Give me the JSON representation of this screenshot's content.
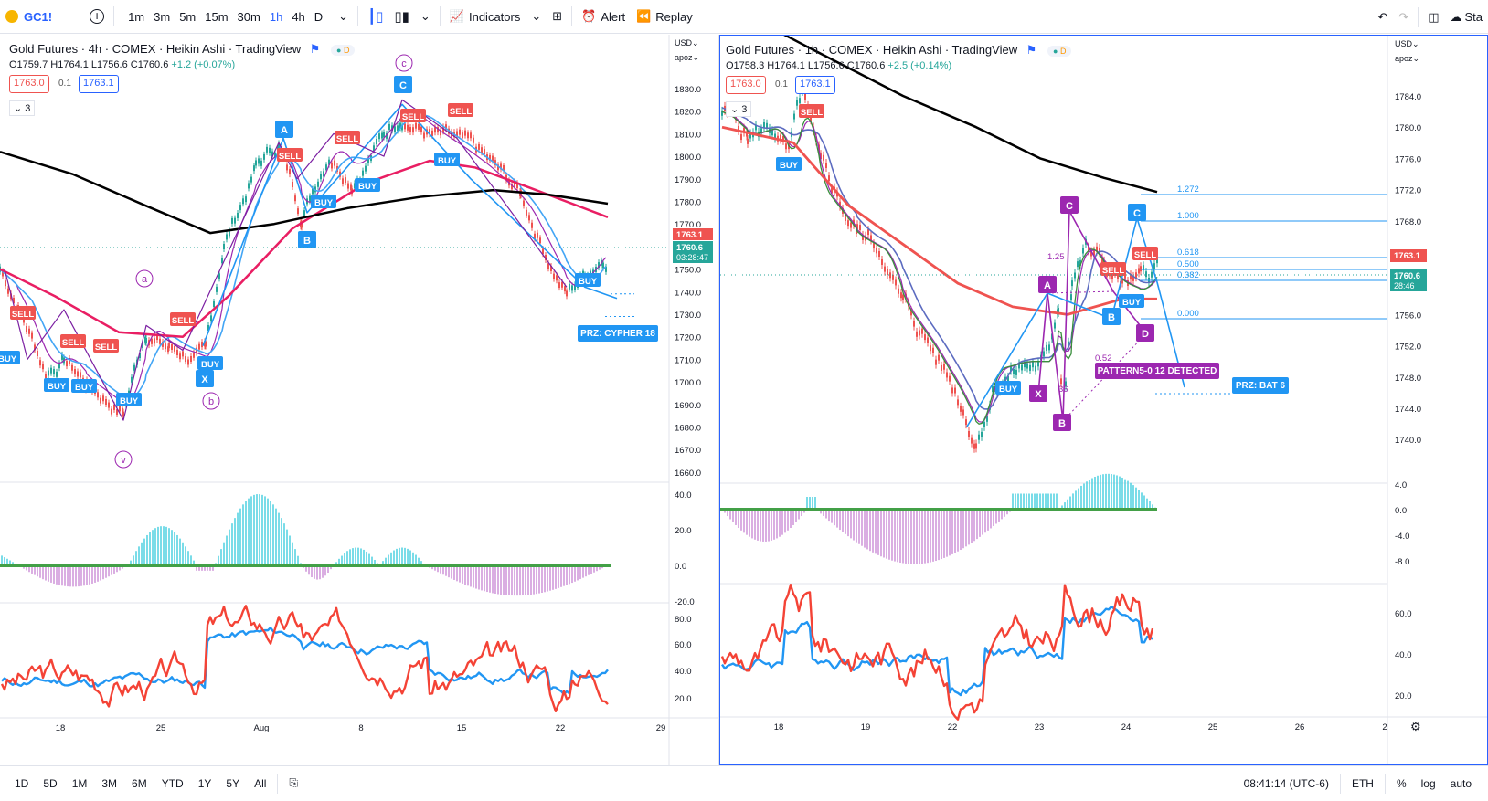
{
  "toolbar": {
    "symbol": "GC1!",
    "intervals": [
      "1m",
      "3m",
      "5m",
      "15m",
      "30m",
      "1h",
      "4h",
      "D"
    ],
    "active_interval": "1h",
    "indicators_label": "Indicators",
    "alert_label": "Alert",
    "replay_label": "Replay",
    "right_truncated": "Sta"
  },
  "left_chart": {
    "title": "Gold Futures · 4h · COMEX · Heikin Ashi · TradingView",
    "ohlc": {
      "o": "O1759.7",
      "h": "H1764.1",
      "l": "L1756.6",
      "c": "C1760.6",
      "chg": "+1.2 (+0.07%)"
    },
    "bid": "1763.0",
    "spread": "0.1",
    "ask": "1763.1",
    "counter": "3",
    "currency": "USD",
    "scale_label": "apoz",
    "price_ticks": [
      "1830.0",
      "1820.0",
      "1810.0",
      "1800.0",
      "1790.0",
      "1780.0",
      "1770.0",
      "1760.0",
      "1750.0",
      "1740.0",
      "1730.0",
      "1720.0",
      "1710.0",
      "1700.0",
      "1690.0",
      "1680.0",
      "1670.0",
      "1660.0"
    ],
    "osc_ticks": [
      "40.0",
      "20.0",
      "0.0",
      "-20.0"
    ],
    "rsi_ticks": [
      "80.0",
      "60.0",
      "40.0",
      "20.0"
    ],
    "time_ticks": [
      "18",
      "25",
      "Aug",
      "8",
      "15",
      "22",
      "29"
    ],
    "price_label": "1763.1",
    "last_label": "1760.6",
    "countdown": "03:28:47",
    "wave_labels": [
      "a",
      "b",
      "c",
      "v"
    ],
    "pattern_labels": [
      "A",
      "B",
      "C",
      "X"
    ],
    "signals": [
      "SELL",
      "BUY"
    ],
    "prz": "PRZ: CYPHER 18"
  },
  "right_chart": {
    "title": "Gold Futures · 1h · COMEX · Heikin Ashi · TradingView",
    "ohlc": {
      "o": "O1758.3",
      "h": "H1764.1",
      "l": "L1756.6",
      "c": "C1760.6",
      "chg": "+2.5 (+0.14%)"
    },
    "bid": "1763.0",
    "spread": "0.1",
    "ask": "1763.1",
    "counter": "3",
    "currency": "USD",
    "scale_label": "apoz",
    "price_ticks": [
      "1784.0",
      "1780.0",
      "1776.0",
      "1772.0",
      "1768.0",
      "1764.0",
      "1760.0",
      "1756.0",
      "1752.0",
      "1748.0",
      "1744.0",
      "1740.0"
    ],
    "osc_ticks": [
      "4.0",
      "0.0",
      "-4.0",
      "-8.0"
    ],
    "rsi_ticks": [
      "60.0",
      "40.0",
      "20.0"
    ],
    "time_ticks": [
      "18",
      "19",
      "22",
      "23",
      "24",
      "25",
      "26",
      "2"
    ],
    "price_label": "1763.1",
    "last_label": "1760.6",
    "countdown": "28:46",
    "fib": [
      "1.272",
      "1.000",
      "0.618",
      "0.500",
      "0.382",
      "0.000"
    ],
    "ratios": [
      "1.25",
      "0.52",
      "36"
    ],
    "pattern_labels": [
      "X",
      "A",
      "B",
      "C",
      "D",
      "C",
      "B"
    ],
    "pattern_text": "PATTERN5-0 12 DETECTED",
    "prz": "PRZ: BAT 6"
  },
  "bottombar": {
    "ranges": [
      "1D",
      "5D",
      "1M",
      "3M",
      "6M",
      "YTD",
      "1Y",
      "5Y",
      "All"
    ],
    "time": "08:41:14 (UTC-6)",
    "session": "ETH",
    "pct": "%",
    "log": "log",
    "auto": "auto"
  },
  "colors": {
    "accent": "#2962ff",
    "sell": "#ef5350",
    "buy": "#2196f3",
    "pattern": "#9c27b0",
    "ma_black": "#000000",
    "ma_red": "#e91e63",
    "rsi": "#f44336"
  }
}
